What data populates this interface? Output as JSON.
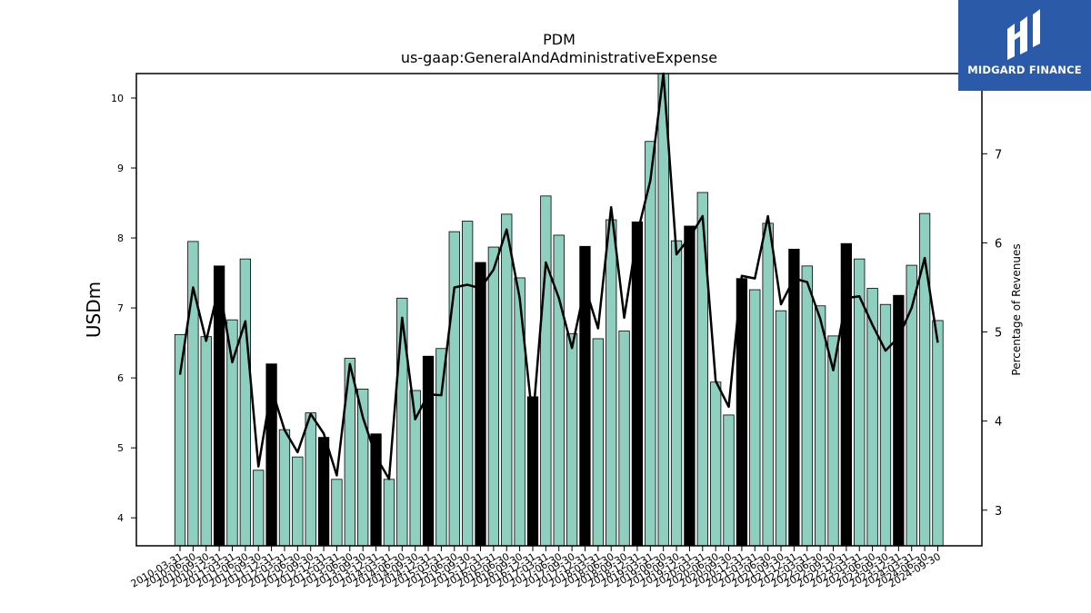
{
  "chart_data": {
    "type": "bar",
    "title": "PDM",
    "subtitle": "us-gaap:GeneralAndAdministrativeExpense",
    "ylabel": "USDm",
    "y2label": "Percentage of Revenues",
    "ylim": [
      3.6,
      10.35
    ],
    "y2lim": [
      2.6,
      7.9
    ],
    "yticks": [
      4,
      5,
      6,
      7,
      8,
      9,
      10
    ],
    "y2ticks": [
      3,
      4,
      5,
      6,
      7
    ],
    "categories": [
      "2010-03-31",
      "2010-06-30",
      "2010-09-30",
      "2010-12-31",
      "2011-03-31",
      "2011-06-30",
      "2011-09-30",
      "2011-12-31",
      "2012-03-31",
      "2012-06-30",
      "2012-09-30",
      "2012-12-31",
      "2013-03-31",
      "2013-06-30",
      "2013-09-30",
      "2013-12-31",
      "2014-03-31",
      "2014-06-30",
      "2014-09-30",
      "2014-12-31",
      "2015-03-31",
      "2015-06-30",
      "2015-09-30",
      "2015-12-31",
      "2016-03-31",
      "2016-06-30",
      "2016-09-30",
      "2016-12-31",
      "2017-03-31",
      "2017-06-30",
      "2017-09-30",
      "2017-12-31",
      "2018-03-31",
      "2018-06-30",
      "2018-09-30",
      "2018-12-31",
      "2019-03-31",
      "2019-06-30",
      "2019-09-30",
      "2019-12-31",
      "2020-03-31",
      "2020-06-30",
      "2020-09-30",
      "2020-12-31",
      "2021-03-31",
      "2021-06-30",
      "2021-09-30",
      "2021-12-31",
      "2022-03-31",
      "2022-06-30",
      "2022-09-30",
      "2022-12-31",
      "2023-03-31",
      "2023-06-30",
      "2023-09-30",
      "2023-12-31",
      "2024-03-31",
      "2024-06-30",
      "2024-09-30"
    ],
    "series": [
      {
        "type": "bar",
        "values": [
          6.62,
          7.95,
          6.59,
          7.6,
          6.83,
          7.7,
          4.68,
          6.2,
          5.26,
          4.87,
          5.5,
          5.15,
          4.55,
          6.28,
          5.84,
          5.2,
          4.55,
          7.14,
          5.82,
          6.31,
          6.42,
          8.09,
          8.24,
          7.65,
          7.87,
          8.34,
          7.43,
          5.73,
          8.6,
          8.04,
          6.63,
          7.88,
          6.56,
          8.26,
          6.67,
          8.23,
          9.38,
          10.45,
          7.96,
          8.17,
          8.65,
          5.94,
          5.47,
          7.42,
          7.26,
          8.21,
          6.96,
          7.84,
          7.6,
          7.03,
          6.6,
          7.92,
          7.7,
          7.28,
          7.05,
          7.18,
          7.61,
          8.35,
          6.82
        ],
        "highlight_color": "#000000",
        "color": "#8ecfc0"
      },
      {
        "type": "line",
        "axis": "right",
        "color": "#000000",
        "values": [
          4.52,
          5.5,
          4.9,
          5.52,
          4.66,
          5.12,
          3.49,
          4.37,
          3.9,
          3.65,
          4.08,
          3.86,
          3.39,
          4.64,
          4.04,
          3.6,
          3.35,
          5.16,
          4.02,
          4.3,
          4.29,
          5.5,
          5.53,
          5.49,
          5.7,
          6.15,
          5.38,
          4.0,
          5.78,
          5.38,
          4.82,
          5.51,
          5.04,
          6.4,
          5.16,
          6.1,
          6.7,
          8.3,
          5.87,
          6.06,
          6.3,
          4.45,
          4.16,
          5.63,
          5.6,
          6.3,
          5.31,
          5.6,
          5.56,
          5.15,
          4.57,
          5.38,
          5.4,
          5.08,
          4.79,
          4.94,
          5.27,
          5.83,
          4.88
        ]
      }
    ],
    "highlighted_indices": [
      3,
      7,
      11,
      15,
      19,
      23,
      27,
      31,
      35,
      39,
      43,
      47,
      51,
      55
    ],
    "grid": false,
    "legend": "none"
  },
  "logo": {
    "text": "MIDGARD FINANCE",
    "background": "#2b5aa8"
  }
}
